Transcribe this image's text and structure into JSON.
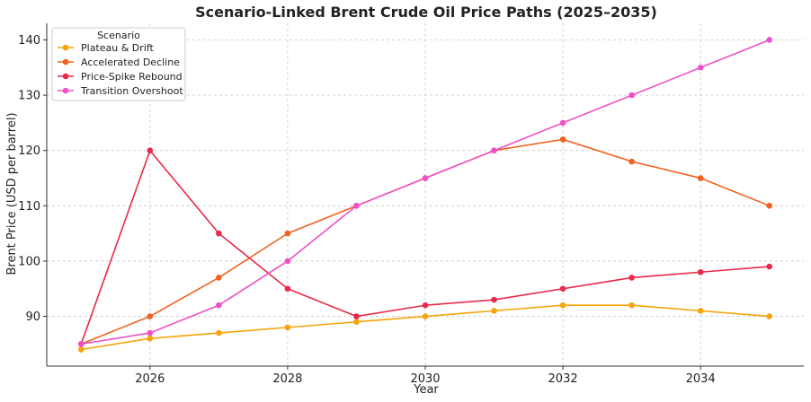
{
  "chart_data": {
    "type": "line",
    "title": "Scenario-Linked Brent Crude Oil Price Paths (2025–2035)",
    "xlabel": "Year",
    "ylabel": "Brent Price (USD per barrel)",
    "x": [
      2025,
      2026,
      2027,
      2028,
      2029,
      2030,
      2031,
      2032,
      2033,
      2034,
      2035
    ],
    "xlim": [
      2024.5,
      2035.5
    ],
    "ylim": [
      81,
      143
    ],
    "xticks": [
      "2026",
      "2028",
      "2030",
      "2032",
      "2034"
    ],
    "yticks": [
      "90",
      "100",
      "110",
      "120",
      "130",
      "140"
    ],
    "grid": true,
    "legend": {
      "title": "Scenario",
      "placement": "top-left"
    },
    "series": [
      {
        "name": "Plateau & Drift",
        "color": "#f5a30a",
        "values": [
          84,
          86,
          87,
          88,
          89,
          90,
          91,
          92,
          92,
          91,
          90
        ]
      },
      {
        "name": "Accelerated Decline",
        "color": "#f0601e",
        "values": [
          85,
          90,
          97,
          105,
          110,
          115,
          120,
          122,
          118,
          115,
          110
        ]
      },
      {
        "name": "Price-Spike Rebound",
        "color": "#e8294a",
        "values": [
          85,
          120,
          105,
          95,
          90,
          92,
          93,
          95,
          97,
          98,
          99
        ]
      },
      {
        "name": "Transition Overshoot",
        "color": "#f050c8",
        "values": [
          85,
          87,
          92,
          100,
          110,
          115,
          120,
          125,
          130,
          135,
          140
        ]
      }
    ]
  }
}
